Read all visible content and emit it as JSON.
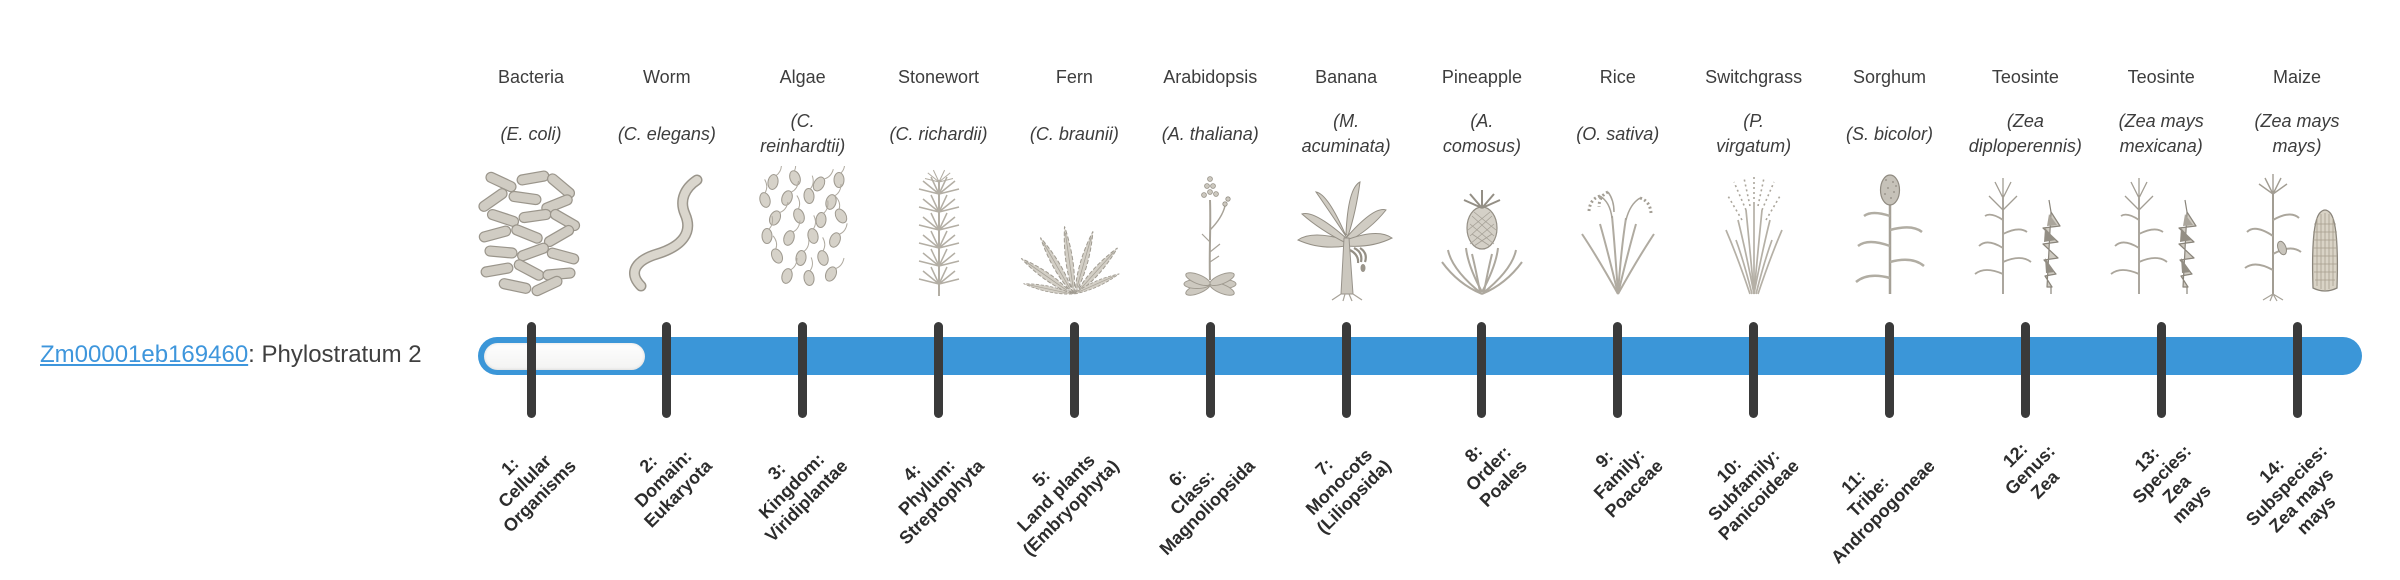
{
  "gene": {
    "id": "Zm00001eb169460",
    "suffix": ": Phylostratum 2",
    "phylostratum": 2
  },
  "colors": {
    "bar_fill": "#3b96d8",
    "bar_unfilled_segment": "#fbfbfa",
    "tick": "#3a3a3a",
    "text_dark": "#3d3d3d",
    "stratum_text": "#2c2c2c",
    "link_blue": "#3e96dc",
    "illustration_gray": "#b5b0a6"
  },
  "organisms": [
    {
      "name": "Bacteria",
      "scientific_lines": [
        "(E. coli)"
      ],
      "icon": "bacteria-icon",
      "icon_ref": "bacteria",
      "stratum_lines": [
        "1:",
        "Cellular",
        "Organisms"
      ]
    },
    {
      "name": "Worm",
      "scientific_lines": [
        "(C. elegans)"
      ],
      "icon": "worm-icon",
      "icon_ref": "worm",
      "stratum_lines": [
        "2:",
        "Domain:",
        "Eukaryota"
      ]
    },
    {
      "name": "Algae",
      "scientific_lines": [
        "(C.",
        "reinhardtii)"
      ],
      "icon": "algae-icon",
      "icon_ref": "algae",
      "stratum_lines": [
        "3:",
        "Kingdom:",
        "Viridiplantae"
      ]
    },
    {
      "name": "Stonewort",
      "scientific_lines": [
        "(C. richardii)"
      ],
      "icon": "stonewort-icon",
      "icon_ref": "stonewort",
      "stratum_lines": [
        "4:",
        "Phylum:",
        "Streptophyta"
      ]
    },
    {
      "name": "Fern",
      "scientific_lines": [
        "(C. braunii)"
      ],
      "icon": "fern-icon",
      "icon_ref": "fern",
      "stratum_lines": [
        "5:",
        "Land plants",
        "(Embryophyta)"
      ]
    },
    {
      "name": "Arabidopsis",
      "scientific_lines": [
        "(A. thaliana)"
      ],
      "icon": "arabidopsis-icon",
      "icon_ref": "arabidopsis",
      "stratum_lines": [
        "6:",
        "Class:",
        "Magnoliopsida"
      ]
    },
    {
      "name": "Banana",
      "scientific_lines": [
        "(M.",
        "acuminata)"
      ],
      "icon": "banana-icon",
      "icon_ref": "banana",
      "stratum_lines": [
        "7:",
        "Monocots",
        "(Liliopsida)"
      ]
    },
    {
      "name": "Pineapple",
      "scientific_lines": [
        "(A.",
        "comosus)"
      ],
      "icon": "pineapple-icon",
      "icon_ref": "pineapple",
      "stratum_lines": [
        "8:",
        "Order:",
        "Poales"
      ]
    },
    {
      "name": "Rice",
      "scientific_lines": [
        "(O. sativa)"
      ],
      "icon": "rice-icon",
      "icon_ref": "rice",
      "stratum_lines": [
        "9:",
        "Family:",
        "Poaceae"
      ]
    },
    {
      "name": "Switchgrass",
      "scientific_lines": [
        "(P.",
        "virgatum)"
      ],
      "icon": "switchgrass-icon",
      "icon_ref": "switchgrass",
      "stratum_lines": [
        "10:",
        "Subfamily:",
        "Panicoideae"
      ]
    },
    {
      "name": "Sorghum",
      "scientific_lines": [
        "(S. bicolor)"
      ],
      "icon": "sorghum-icon",
      "icon_ref": "sorghum",
      "stratum_lines": [
        "11:",
        "Tribe:",
        "Andropogoneae"
      ]
    },
    {
      "name": "Teosinte",
      "scientific_lines": [
        "(Zea",
        "diploperennis)"
      ],
      "icon": "teosinte-icon",
      "icon_ref": "teosinte",
      "stratum_lines": [
        "12:",
        "Genus:",
        "Zea"
      ]
    },
    {
      "name": "Teosinte",
      "scientific_lines": [
        "(Zea mays",
        "mexicana)"
      ],
      "icon": "teosinte-icon",
      "icon_ref": "teosinte",
      "stratum_lines": [
        "13:",
        "Species:",
        "Zea",
        "mays"
      ]
    },
    {
      "name": "Maize",
      "scientific_lines": [
        "(Zea mays",
        "mays)"
      ],
      "icon": "maize-icon",
      "icon_ref": "maize",
      "stratum_lines": [
        "14:",
        "Subspecies:",
        "Zea mays",
        "mays"
      ]
    }
  ]
}
